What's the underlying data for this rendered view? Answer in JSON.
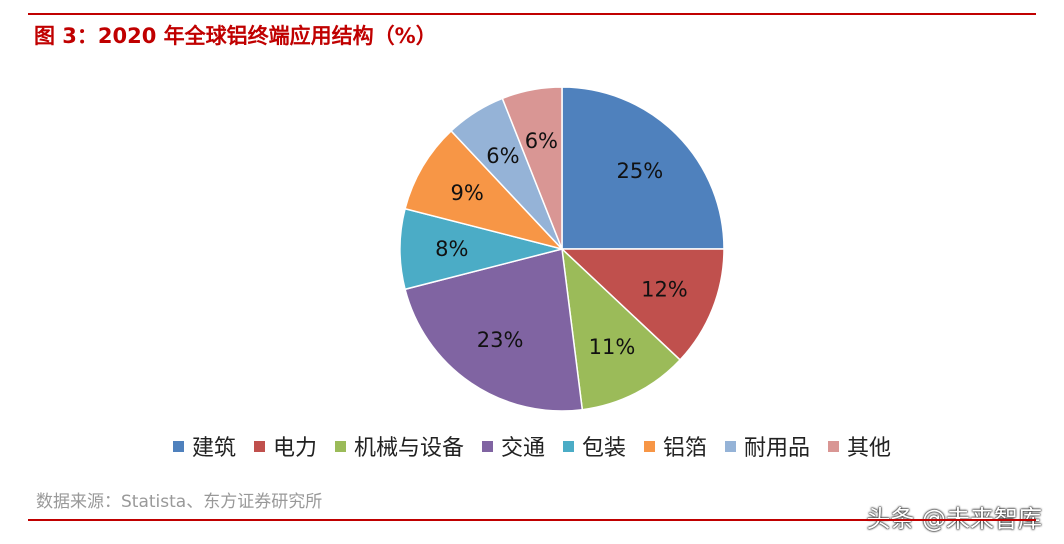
{
  "header": {
    "title": "图 3：2020 年全球铝终端应用结构（%）"
  },
  "chart_data": {
    "type": "pie",
    "title": "图 3：2020 年全球铝终端应用结构（%）",
    "slices": [
      {
        "label": "建筑",
        "value": 25,
        "text": "25%",
        "color": "#4f81bd"
      },
      {
        "label": "电力",
        "value": 12,
        "text": "12%",
        "color": "#c0504d"
      },
      {
        "label": "机械与设备",
        "value": 11,
        "text": "11%",
        "color": "#9bbb59"
      },
      {
        "label": "交通",
        "value": 23,
        "text": "23%",
        "color": "#8064a2"
      },
      {
        "label": "包装",
        "value": 8,
        "text": "8%",
        "color": "#4bacc6"
      },
      {
        "label": "铝箔",
        "value": 9,
        "text": "9%",
        "color": "#f79646"
      },
      {
        "label": "耐用品",
        "value": 6,
        "text": "6%",
        "color": "#95b3d7"
      },
      {
        "label": "其他",
        "value": 6,
        "text": "6%",
        "color": "#d99694"
      }
    ],
    "legend_position": "bottom"
  },
  "footer": {
    "source": "数据来源：Statista、东方证券研究所",
    "watermark": "头条 @未来智库"
  }
}
